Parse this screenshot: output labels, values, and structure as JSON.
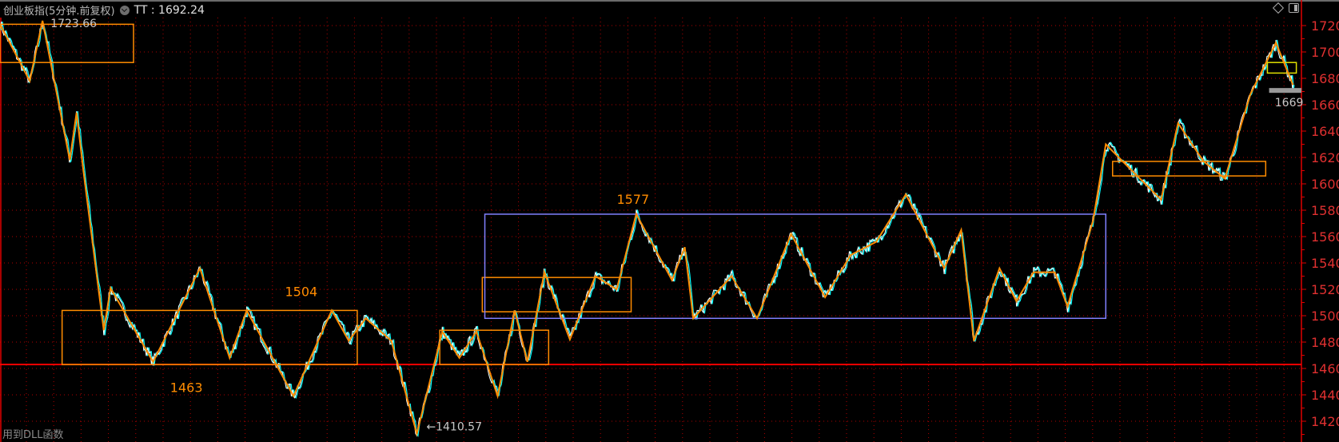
{
  "header": {
    "title": "创业板指(5分钟.前复权)",
    "indicator": "TT : 1692.24",
    "icons": [
      "chevron-down-circle-icon",
      "diamond-icon",
      "panel-toggle-icon"
    ]
  },
  "footer": {
    "note": "用到DLL函数"
  },
  "colors": {
    "background": "#000000",
    "axis": "#e00000",
    "grid": "#b00000",
    "price_up": "#ffffff",
    "price_alt": "#00ffff",
    "zigzag": "#ff8c00",
    "box": "#ff8c00",
    "range_box": "#8080ff",
    "support_line": "#ff0000"
  },
  "chart_data": {
    "type": "line",
    "title": "",
    "xlabel": "",
    "ylabel": "",
    "ylim": [
      1410,
      1726
    ],
    "yticks": [
      1720,
      1700,
      1680,
      1660,
      1640,
      1620,
      1600,
      1580,
      1560,
      1540,
      1520,
      1500,
      1480,
      1460,
      1440,
      1420
    ],
    "grid": true,
    "zigzag": [
      [
        0,
        1721
      ],
      [
        35,
        1678
      ],
      [
        50,
        1723.66
      ],
      [
        82,
        1618
      ],
      [
        90,
        1654
      ],
      [
        98,
        1610
      ],
      [
        122,
        1489
      ],
      [
        130,
        1521
      ],
      [
        180,
        1465
      ],
      [
        235,
        1536
      ],
      [
        270,
        1468
      ],
      [
        290,
        1504
      ],
      [
        345,
        1439
      ],
      [
        390,
        1504
      ],
      [
        410,
        1481
      ],
      [
        430,
        1498
      ],
      [
        460,
        1481
      ],
      [
        490,
        1410.57
      ],
      [
        520,
        1488
      ],
      [
        540,
        1468
      ],
      [
        560,
        1488
      ],
      [
        585,
        1439
      ],
      [
        605,
        1504
      ],
      [
        620,
        1465
      ],
      [
        640,
        1533
      ],
      [
        670,
        1482
      ],
      [
        700,
        1530
      ],
      [
        725,
        1520
      ],
      [
        748,
        1577
      ],
      [
        790,
        1527
      ],
      [
        805,
        1552
      ],
      [
        815,
        1498
      ],
      [
        860,
        1530
      ],
      [
        890,
        1498
      ],
      [
        930,
        1562
      ],
      [
        970,
        1514
      ],
      [
        1000,
        1546
      ],
      [
        1030,
        1556
      ],
      [
        1065,
        1592
      ],
      [
        1110,
        1536
      ],
      [
        1130,
        1565
      ],
      [
        1145,
        1481
      ],
      [
        1175,
        1536
      ],
      [
        1195,
        1511
      ],
      [
        1215,
        1533
      ],
      [
        1240,
        1533
      ],
      [
        1255,
        1507
      ],
      [
        1285,
        1572
      ],
      [
        1300,
        1630
      ],
      [
        1320,
        1617
      ],
      [
        1365,
        1588
      ],
      [
        1385,
        1646
      ],
      [
        1415,
        1617
      ],
      [
        1440,
        1604
      ],
      [
        1470,
        1668
      ],
      [
        1500,
        1707
      ],
      [
        1520,
        1675
      ]
    ],
    "boxes": [
      {
        "x": [
          0,
          157
        ],
        "y": [
          1692,
          1721
        ],
        "color": "#ff8c00"
      },
      {
        "x": [
          73,
          420
        ],
        "y": [
          1463,
          1504
        ],
        "color": "#ff8c00"
      },
      {
        "x": [
          517,
          645
        ],
        "y": [
          1463,
          1489
        ],
        "color": "#ff8c00"
      },
      {
        "x": [
          567,
          742
        ],
        "y": [
          1503,
          1529
        ],
        "color": "#ff8c00"
      },
      {
        "x": [
          570,
          1300
        ],
        "y": [
          1498,
          1577
        ],
        "color": "#8080ff"
      },
      {
        "x": [
          1308,
          1488
        ],
        "y": [
          1606,
          1617
        ],
        "color": "#ff8c00"
      },
      {
        "x": [
          1490,
          1524
        ],
        "y": [
          1684,
          1692
        ],
        "color": "#e0e000"
      }
    ],
    "support_line": 1463,
    "last_price_marker": 1669,
    "annotations": [
      {
        "text": "1723.66",
        "x": 50,
        "y": 1723.66,
        "kind": "high"
      },
      {
        "text": "1410.57",
        "x": 490,
        "y": 1410.57,
        "kind": "low"
      },
      {
        "text": "1504",
        "x": 335,
        "y": 1515,
        "kind": "level"
      },
      {
        "text": "1463",
        "x": 200,
        "y": 1442,
        "kind": "level"
      },
      {
        "text": "1577",
        "x": 725,
        "y": 1585,
        "kind": "level"
      },
      {
        "text": "1669",
        "x": 1495,
        "y": 1665,
        "kind": "last"
      }
    ]
  }
}
